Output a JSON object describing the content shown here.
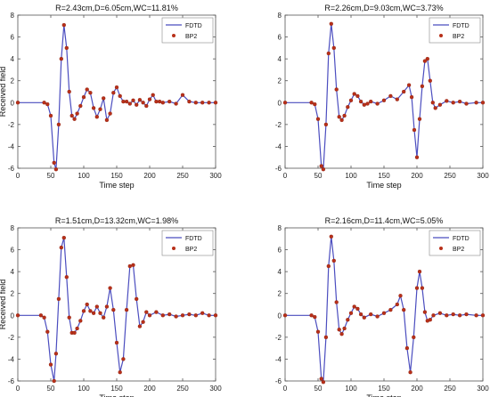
{
  "figure": {
    "colors": {
      "fdtd": "#4b4dbf",
      "bp2": "#b83019",
      "axis": "#555555",
      "background": "#ffffff"
    }
  },
  "chart_data": [
    {
      "type": "line",
      "title": "R=2.43cm,D=6.05cm,WC=11.81%",
      "xlabel": "Time step",
      "ylabel": "Received field",
      "xlim": [
        0,
        300
      ],
      "ylim": [
        -6,
        8
      ],
      "xticks": [
        "0",
        "50",
        "100",
        "150",
        "200",
        "250",
        "300"
      ],
      "yticks": [
        "-6",
        "-4",
        "-2",
        "0",
        "2",
        "4",
        "6",
        "8"
      ],
      "grid": false,
      "legend": {
        "position": "top-right",
        "entries": [
          "FDTD",
          "BP2"
        ]
      },
      "series": [
        {
          "name": "FDTD",
          "style": "line",
          "x": [
            0,
            40,
            45,
            50,
            55,
            58,
            62,
            66,
            70,
            74,
            78,
            82,
            86,
            90,
            95,
            100,
            105,
            110,
            115,
            120,
            125,
            130,
            135,
            140,
            145,
            150,
            155,
            160,
            165,
            170,
            175,
            180,
            185,
            190,
            195,
            200,
            205,
            210,
            215,
            220,
            230,
            240,
            250,
            260,
            270,
            280,
            290,
            300
          ],
          "y": [
            0,
            0,
            -0.15,
            -1.2,
            -5.5,
            -6.1,
            -2.0,
            4.0,
            7.1,
            5.0,
            1.0,
            -1.2,
            -1.5,
            -1.0,
            -0.3,
            0.5,
            1.2,
            0.9,
            -0.5,
            -1.3,
            -0.6,
            0.4,
            -1.6,
            -1.0,
            0.9,
            1.4,
            0.6,
            0.1,
            0.1,
            -0.1,
            0.2,
            -0.2,
            0.25,
            0.0,
            -0.3,
            0.3,
            0.7,
            0.1,
            0.1,
            0.0,
            0.1,
            -0.1,
            0.7,
            0.1,
            0.0,
            0.0,
            0.0,
            0.0
          ]
        },
        {
          "name": "BP2",
          "style": "markers",
          "x": [
            0,
            40,
            45,
            50,
            55,
            58,
            62,
            66,
            70,
            74,
            78,
            82,
            86,
            90,
            95,
            100,
            105,
            110,
            115,
            120,
            125,
            130,
            135,
            140,
            145,
            150,
            155,
            160,
            165,
            170,
            175,
            180,
            185,
            190,
            195,
            200,
            205,
            210,
            215,
            220,
            230,
            240,
            250,
            260,
            270,
            280,
            290,
            300
          ],
          "y": [
            0,
            0,
            -0.15,
            -1.2,
            -5.5,
            -6.1,
            -2.0,
            4.0,
            7.1,
            5.0,
            1.0,
            -1.2,
            -1.5,
            -1.0,
            -0.3,
            0.5,
            1.2,
            0.9,
            -0.5,
            -1.3,
            -0.6,
            0.4,
            -1.6,
            -1.0,
            0.9,
            1.4,
            0.6,
            0.1,
            0.1,
            -0.1,
            0.2,
            -0.2,
            0.25,
            0.0,
            -0.3,
            0.3,
            0.7,
            0.1,
            0.1,
            0.0,
            0.1,
            -0.1,
            0.7,
            0.1,
            0.0,
            0.0,
            0.0,
            0.0
          ]
        }
      ]
    },
    {
      "type": "line",
      "title": "R=2.26cm,D=9.03cm,WC=3.73%",
      "xlabel": "Time step",
      "ylabel": "",
      "xlim": [
        0,
        300
      ],
      "ylim": [
        -6,
        8
      ],
      "xticks": [
        "0",
        "50",
        "100",
        "150",
        "200",
        "250",
        "300"
      ],
      "yticks": [
        "-6",
        "-4",
        "-2",
        "0",
        "2",
        "4",
        "6",
        "8"
      ],
      "grid": false,
      "legend": {
        "position": "top-right",
        "entries": [
          "FDTD",
          "BP2"
        ]
      },
      "series": [
        {
          "name": "FDTD",
          "style": "line",
          "x": [
            0,
            40,
            45,
            50,
            55,
            58,
            62,
            66,
            70,
            74,
            78,
            82,
            86,
            90,
            95,
            100,
            105,
            110,
            115,
            120,
            125,
            130,
            140,
            150,
            160,
            170,
            180,
            188,
            192,
            196,
            200,
            204,
            208,
            212,
            216,
            220,
            224,
            228,
            235,
            245,
            255,
            265,
            275,
            290,
            300
          ],
          "y": [
            0,
            0,
            -0.15,
            -1.5,
            -5.8,
            -6.1,
            -2.0,
            4.5,
            7.2,
            5.0,
            1.2,
            -1.3,
            -1.6,
            -1.2,
            -0.4,
            0.2,
            0.8,
            0.6,
            0.1,
            -0.2,
            -0.1,
            0.1,
            -0.1,
            0.2,
            0.6,
            0.3,
            1.0,
            1.6,
            0.5,
            -2.5,
            -5.0,
            -1.5,
            1.5,
            3.8,
            4.0,
            2.0,
            0.0,
            -0.5,
            -0.2,
            0.15,
            0.0,
            0.1,
            -0.1,
            0.0,
            0.0
          ]
        },
        {
          "name": "BP2",
          "style": "markers",
          "x": [
            0,
            40,
            45,
            50,
            55,
            58,
            62,
            66,
            70,
            74,
            78,
            82,
            86,
            90,
            95,
            100,
            105,
            110,
            115,
            120,
            125,
            130,
            140,
            150,
            160,
            170,
            180,
            188,
            192,
            196,
            200,
            204,
            208,
            212,
            216,
            220,
            224,
            228,
            235,
            245,
            255,
            265,
            275,
            290,
            300
          ],
          "y": [
            0,
            0,
            -0.15,
            -1.5,
            -5.8,
            -6.1,
            -2.0,
            4.5,
            7.2,
            5.0,
            1.2,
            -1.3,
            -1.6,
            -1.2,
            -0.4,
            0.2,
            0.8,
            0.6,
            0.1,
            -0.2,
            -0.1,
            0.1,
            -0.1,
            0.2,
            0.6,
            0.3,
            1.0,
            1.6,
            0.5,
            -2.5,
            -5.0,
            -1.5,
            1.5,
            3.8,
            4.0,
            2.0,
            0.0,
            -0.5,
            -0.2,
            0.15,
            0.0,
            0.1,
            -0.1,
            0.0,
            0.0
          ]
        }
      ]
    },
    {
      "type": "line",
      "title": "R=1.51cm,D=13.32cm,WC=1.98%",
      "xlabel": "Time step",
      "ylabel": "Received field",
      "xlim": [
        0,
        300
      ],
      "ylim": [
        -6,
        8
      ],
      "xticks": [
        "0",
        "50",
        "100",
        "150",
        "200",
        "250",
        "300"
      ],
      "yticks": [
        "-6",
        "-4",
        "-2",
        "0",
        "2",
        "4",
        "6",
        "8"
      ],
      "grid": false,
      "legend": {
        "position": "top-right",
        "entries": [
          "FDTD",
          "BP2"
        ]
      },
      "series": [
        {
          "name": "FDTD",
          "style": "line",
          "x": [
            0,
            35,
            40,
            45,
            50,
            55,
            58,
            62,
            66,
            70,
            74,
            78,
            82,
            86,
            90,
            95,
            100,
            105,
            110,
            115,
            120,
            125,
            130,
            135,
            140,
            145,
            150,
            155,
            160,
            165,
            170,
            175,
            180,
            185,
            190,
            195,
            200,
            210,
            220,
            230,
            240,
            250,
            260,
            270,
            280,
            290,
            300
          ],
          "y": [
            0,
            0,
            -0.2,
            -1.5,
            -4.5,
            -6.0,
            -3.5,
            1.5,
            6.2,
            7.1,
            3.5,
            -0.2,
            -1.6,
            -1.6,
            -1.2,
            -0.5,
            0.4,
            1.0,
            0.4,
            0.2,
            0.8,
            0.2,
            -0.2,
            0.8,
            2.5,
            0.5,
            -2.5,
            -5.2,
            -4.0,
            0.5,
            4.5,
            4.6,
            1.5,
            -1.0,
            -0.6,
            0.3,
            0.0,
            0.3,
            0.0,
            0.1,
            -0.1,
            0.0,
            0.1,
            0.0,
            0.2,
            0.0,
            0.0
          ]
        },
        {
          "name": "BP2",
          "style": "markers",
          "x": [
            0,
            35,
            40,
            45,
            50,
            55,
            58,
            62,
            66,
            70,
            74,
            78,
            82,
            86,
            90,
            95,
            100,
            105,
            110,
            115,
            120,
            125,
            130,
            135,
            140,
            145,
            150,
            155,
            160,
            165,
            170,
            175,
            180,
            185,
            190,
            195,
            200,
            210,
            220,
            230,
            240,
            250,
            260,
            270,
            280,
            290,
            300
          ],
          "y": [
            0,
            0,
            -0.2,
            -1.5,
            -4.5,
            -6.0,
            -3.5,
            1.5,
            6.2,
            7.1,
            3.5,
            -0.2,
            -1.6,
            -1.6,
            -1.2,
            -0.5,
            0.4,
            1.0,
            0.4,
            0.2,
            0.8,
            0.2,
            -0.2,
            0.8,
            2.5,
            0.5,
            -2.5,
            -5.2,
            -4.0,
            0.5,
            4.5,
            4.6,
            1.5,
            -1.0,
            -0.6,
            0.3,
            0.0,
            0.3,
            0.0,
            0.1,
            -0.1,
            0.0,
            0.1,
            0.0,
            0.2,
            0.0,
            0.0
          ]
        }
      ]
    },
    {
      "type": "line",
      "title": "R=2.16cm,D=11.4cm,WC=5.05%",
      "xlabel": "Time step",
      "ylabel": "",
      "xlim": [
        0,
        300
      ],
      "ylim": [
        -6,
        8
      ],
      "xticks": [
        "0",
        "50",
        "100",
        "150",
        "200",
        "250",
        "300"
      ],
      "yticks": [
        "-6",
        "-4",
        "-2",
        "0",
        "2",
        "4",
        "6",
        "8"
      ],
      "grid": false,
      "legend": {
        "position": "top-right",
        "entries": [
          "FDTD",
          "BP2"
        ]
      },
      "series": [
        {
          "name": "FDTD",
          "style": "line",
          "x": [
            0,
            40,
            45,
            50,
            55,
            58,
            62,
            66,
            70,
            74,
            78,
            82,
            86,
            90,
            95,
            100,
            105,
            110,
            115,
            120,
            130,
            140,
            150,
            160,
            170,
            175,
            180,
            185,
            190,
            195,
            200,
            204,
            208,
            212,
            216,
            220,
            225,
            235,
            245,
            255,
            265,
            275,
            290,
            300
          ],
          "y": [
            0,
            0,
            -0.15,
            -1.5,
            -5.8,
            -6.1,
            -2.0,
            4.5,
            7.2,
            5.0,
            1.2,
            -1.3,
            -1.7,
            -1.2,
            -0.4,
            0.2,
            0.8,
            0.6,
            0.1,
            -0.2,
            0.1,
            -0.1,
            0.2,
            0.5,
            1.0,
            1.8,
            0.5,
            -3.0,
            -5.2,
            -2.0,
            2.5,
            4.0,
            2.5,
            0.3,
            -0.5,
            -0.4,
            0.0,
            0.2,
            0.0,
            0.1,
            0.0,
            0.1,
            0.0,
            0.0
          ]
        },
        {
          "name": "BP2",
          "style": "markers",
          "x": [
            0,
            40,
            45,
            50,
            55,
            58,
            62,
            66,
            70,
            74,
            78,
            82,
            86,
            90,
            95,
            100,
            105,
            110,
            115,
            120,
            130,
            140,
            150,
            160,
            170,
            175,
            180,
            185,
            190,
            195,
            200,
            204,
            208,
            212,
            216,
            220,
            225,
            235,
            245,
            255,
            265,
            275,
            290,
            300
          ],
          "y": [
            0,
            0,
            -0.15,
            -1.5,
            -5.8,
            -6.1,
            -2.0,
            4.5,
            7.2,
            5.0,
            1.2,
            -1.3,
            -1.7,
            -1.2,
            -0.4,
            0.2,
            0.8,
            0.6,
            0.1,
            -0.2,
            0.1,
            -0.1,
            0.2,
            0.5,
            1.0,
            1.8,
            0.5,
            -3.0,
            -5.2,
            -2.0,
            2.5,
            4.0,
            2.5,
            0.3,
            -0.5,
            -0.4,
            0.0,
            0.2,
            0.0,
            0.1,
            0.0,
            0.1,
            0.0,
            0.0
          ]
        }
      ]
    }
  ]
}
